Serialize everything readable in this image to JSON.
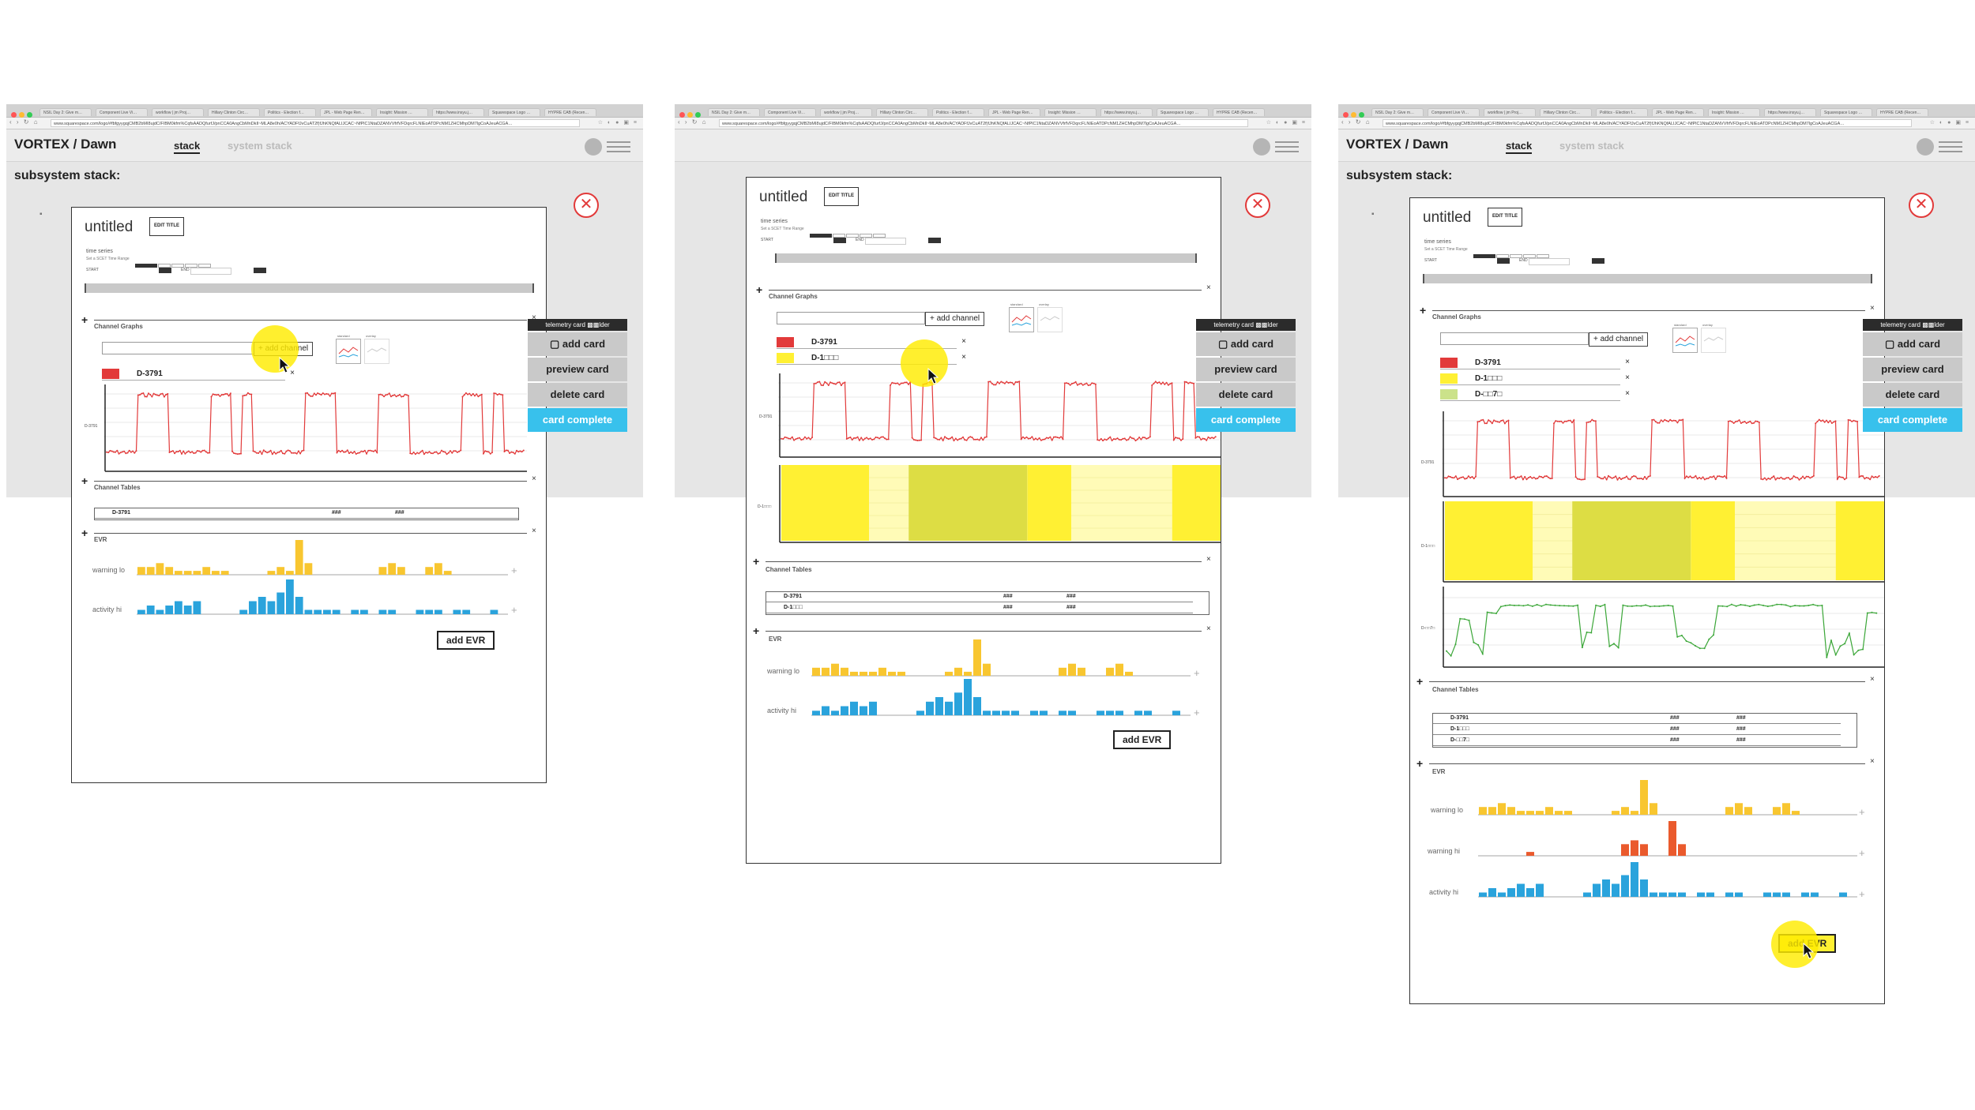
{
  "browser": {
    "tabs": [
      "NSIL Day 2: Give m…",
      "Component Live Vi…",
      "workflow | jm Proj…",
      "Hillary Clinton Circ…",
      "Politics - Election f…",
      "JPL - Web Page Ren…",
      "Insight: Mission …",
      "https://www.insyu.j…",
      "Squarespace Logo …",
      "HYPRE CAB (Recen…"
    ],
    "url": "www.squarespace.com/logo/#fbfgyygqjCMB2bMI8ujdC/FIBM0kfm%CqfsAADQfurfJ/pnCCA0AngCbMnDkIl~MLA8e0h/ACYADFfJvCuAT2f)fJhKNQfALIJCAC~NfPlC1NtaDZANVVfrfVFDqrcFLNIEoATDPcNM1ZHCMhpDM7lgCoAJeuACGA…",
    "nav_icons": "‹ › ↻ ⌂",
    "url_icons": "☆ ◐ ● ▣ ≡"
  },
  "app": {
    "brand": "VORTEX / Dawn",
    "tab_stack": "stack",
    "tab_system_stack": "system stack",
    "subsystem_label": "subsystem stack:",
    "bullet": "▪",
    "close_symbol": "✕"
  },
  "card": {
    "title": "untitled",
    "edit_title": "EDIT TITLE",
    "time_series_label": "time series",
    "time_range_label": "Set a SCET Time Range",
    "start_label": "START",
    "end_label": "END",
    "plus": "+",
    "x": "×",
    "channel_graphs": "Channel Graphs",
    "add_channel": "+ add channel",
    "thumb_label_1": "standard",
    "thumb_label_2": "overlay",
    "channel_tables": "Channel Tables",
    "table_hash": "###",
    "evr": "EVR",
    "warning_lo": "warning lo",
    "warning_hi": "warning hi",
    "activity_hi": "activity hi",
    "add_evr": "add EVR",
    "evr_plus": "+"
  },
  "channels": {
    "ch1": "D-3791",
    "ch2": "D-1□□□",
    "ch3": "D-□□7□"
  },
  "sidebar": {
    "header": "telemetry card ▩▩lder",
    "add_card": "▢ add card",
    "preview_card": "preview card",
    "delete_card": "delete card",
    "card_complete": "card complete"
  },
  "colors": {
    "red": "#e23a3a",
    "yellow": "#fff033",
    "yellow_pale": "#fffbb7",
    "olive": "#dddd44",
    "green": "#3aa637",
    "blue": "#2aa3dc",
    "orange": "#ea5a2d",
    "evr_yellow": "#f8c630",
    "cyan": "#38c1ec"
  },
  "chart_data": [
    {
      "type": "line",
      "title": "",
      "series": [
        {
          "name": "D-3791",
          "values": [
            0,
            0,
            0,
            1,
            1,
            1,
            0,
            0,
            0,
            0,
            1,
            1,
            0,
            1,
            0,
            0,
            0,
            0,
            0,
            1,
            1,
            1,
            0,
            0,
            0,
            0,
            1,
            1,
            1,
            0,
            0,
            0,
            0,
            0,
            1,
            1,
            0,
            1,
            0,
            0
          ]
        }
      ],
      "ylim": [
        0,
        1
      ]
    },
    {
      "type": "heatmap",
      "title": "",
      "series": [
        {
          "name": "D-1□□□",
          "values": [
            3,
            1,
            2,
            3,
            1,
            3
          ]
        }
      ]
    },
    {
      "type": "line",
      "title": "",
      "series": [
        {
          "name": "D-□□7□",
          "values": [
            0.2,
            0.6,
            0.2,
            0.7,
            0.8,
            0.8,
            0.8,
            0.8,
            0.8,
            0.8,
            0.3,
            0.8,
            0.3,
            0.8,
            0.8,
            0.8,
            0.8,
            0.3,
            0.2,
            0.3,
            0.8,
            0.8,
            0.8,
            0.8,
            0.8,
            0.8,
            0.8,
            0.8,
            0.2,
            0.3,
            0.2,
            0.7
          ]
        }
      ],
      "ylim": [
        0,
        1
      ]
    },
    {
      "type": "bar",
      "title": "",
      "series": [
        {
          "name": "warning lo",
          "values": [
            2,
            2,
            3,
            2,
            1,
            1,
            1,
            2,
            1,
            1,
            0,
            0,
            0,
            0,
            1,
            2,
            1,
            9,
            3,
            0,
            0,
            0,
            0,
            0,
            0,
            0,
            2,
            3,
            2,
            0,
            0,
            2,
            3,
            1,
            0,
            0,
            0,
            0,
            0,
            0
          ]
        },
        {
          "name": "warning hi",
          "values": [
            0,
            0,
            0,
            0,
            0,
            1,
            0,
            0,
            0,
            0,
            0,
            0,
            0,
            0,
            0,
            3,
            4,
            3,
            0,
            0,
            9,
            3,
            0,
            0,
            0,
            0,
            0,
            0,
            0,
            0,
            0,
            0,
            0,
            0,
            0,
            0,
            0,
            0,
            0,
            0
          ]
        },
        {
          "name": "activity hi",
          "values": [
            1,
            2,
            1,
            2,
            3,
            2,
            3,
            0,
            0,
            0,
            0,
            1,
            3,
            4,
            3,
            5,
            8,
            4,
            1,
            1,
            1,
            1,
            0,
            1,
            1,
            0,
            1,
            1,
            0,
            0,
            1,
            1,
            1,
            0,
            1,
            1,
            0,
            0,
            1,
            0
          ]
        }
      ]
    }
  ]
}
